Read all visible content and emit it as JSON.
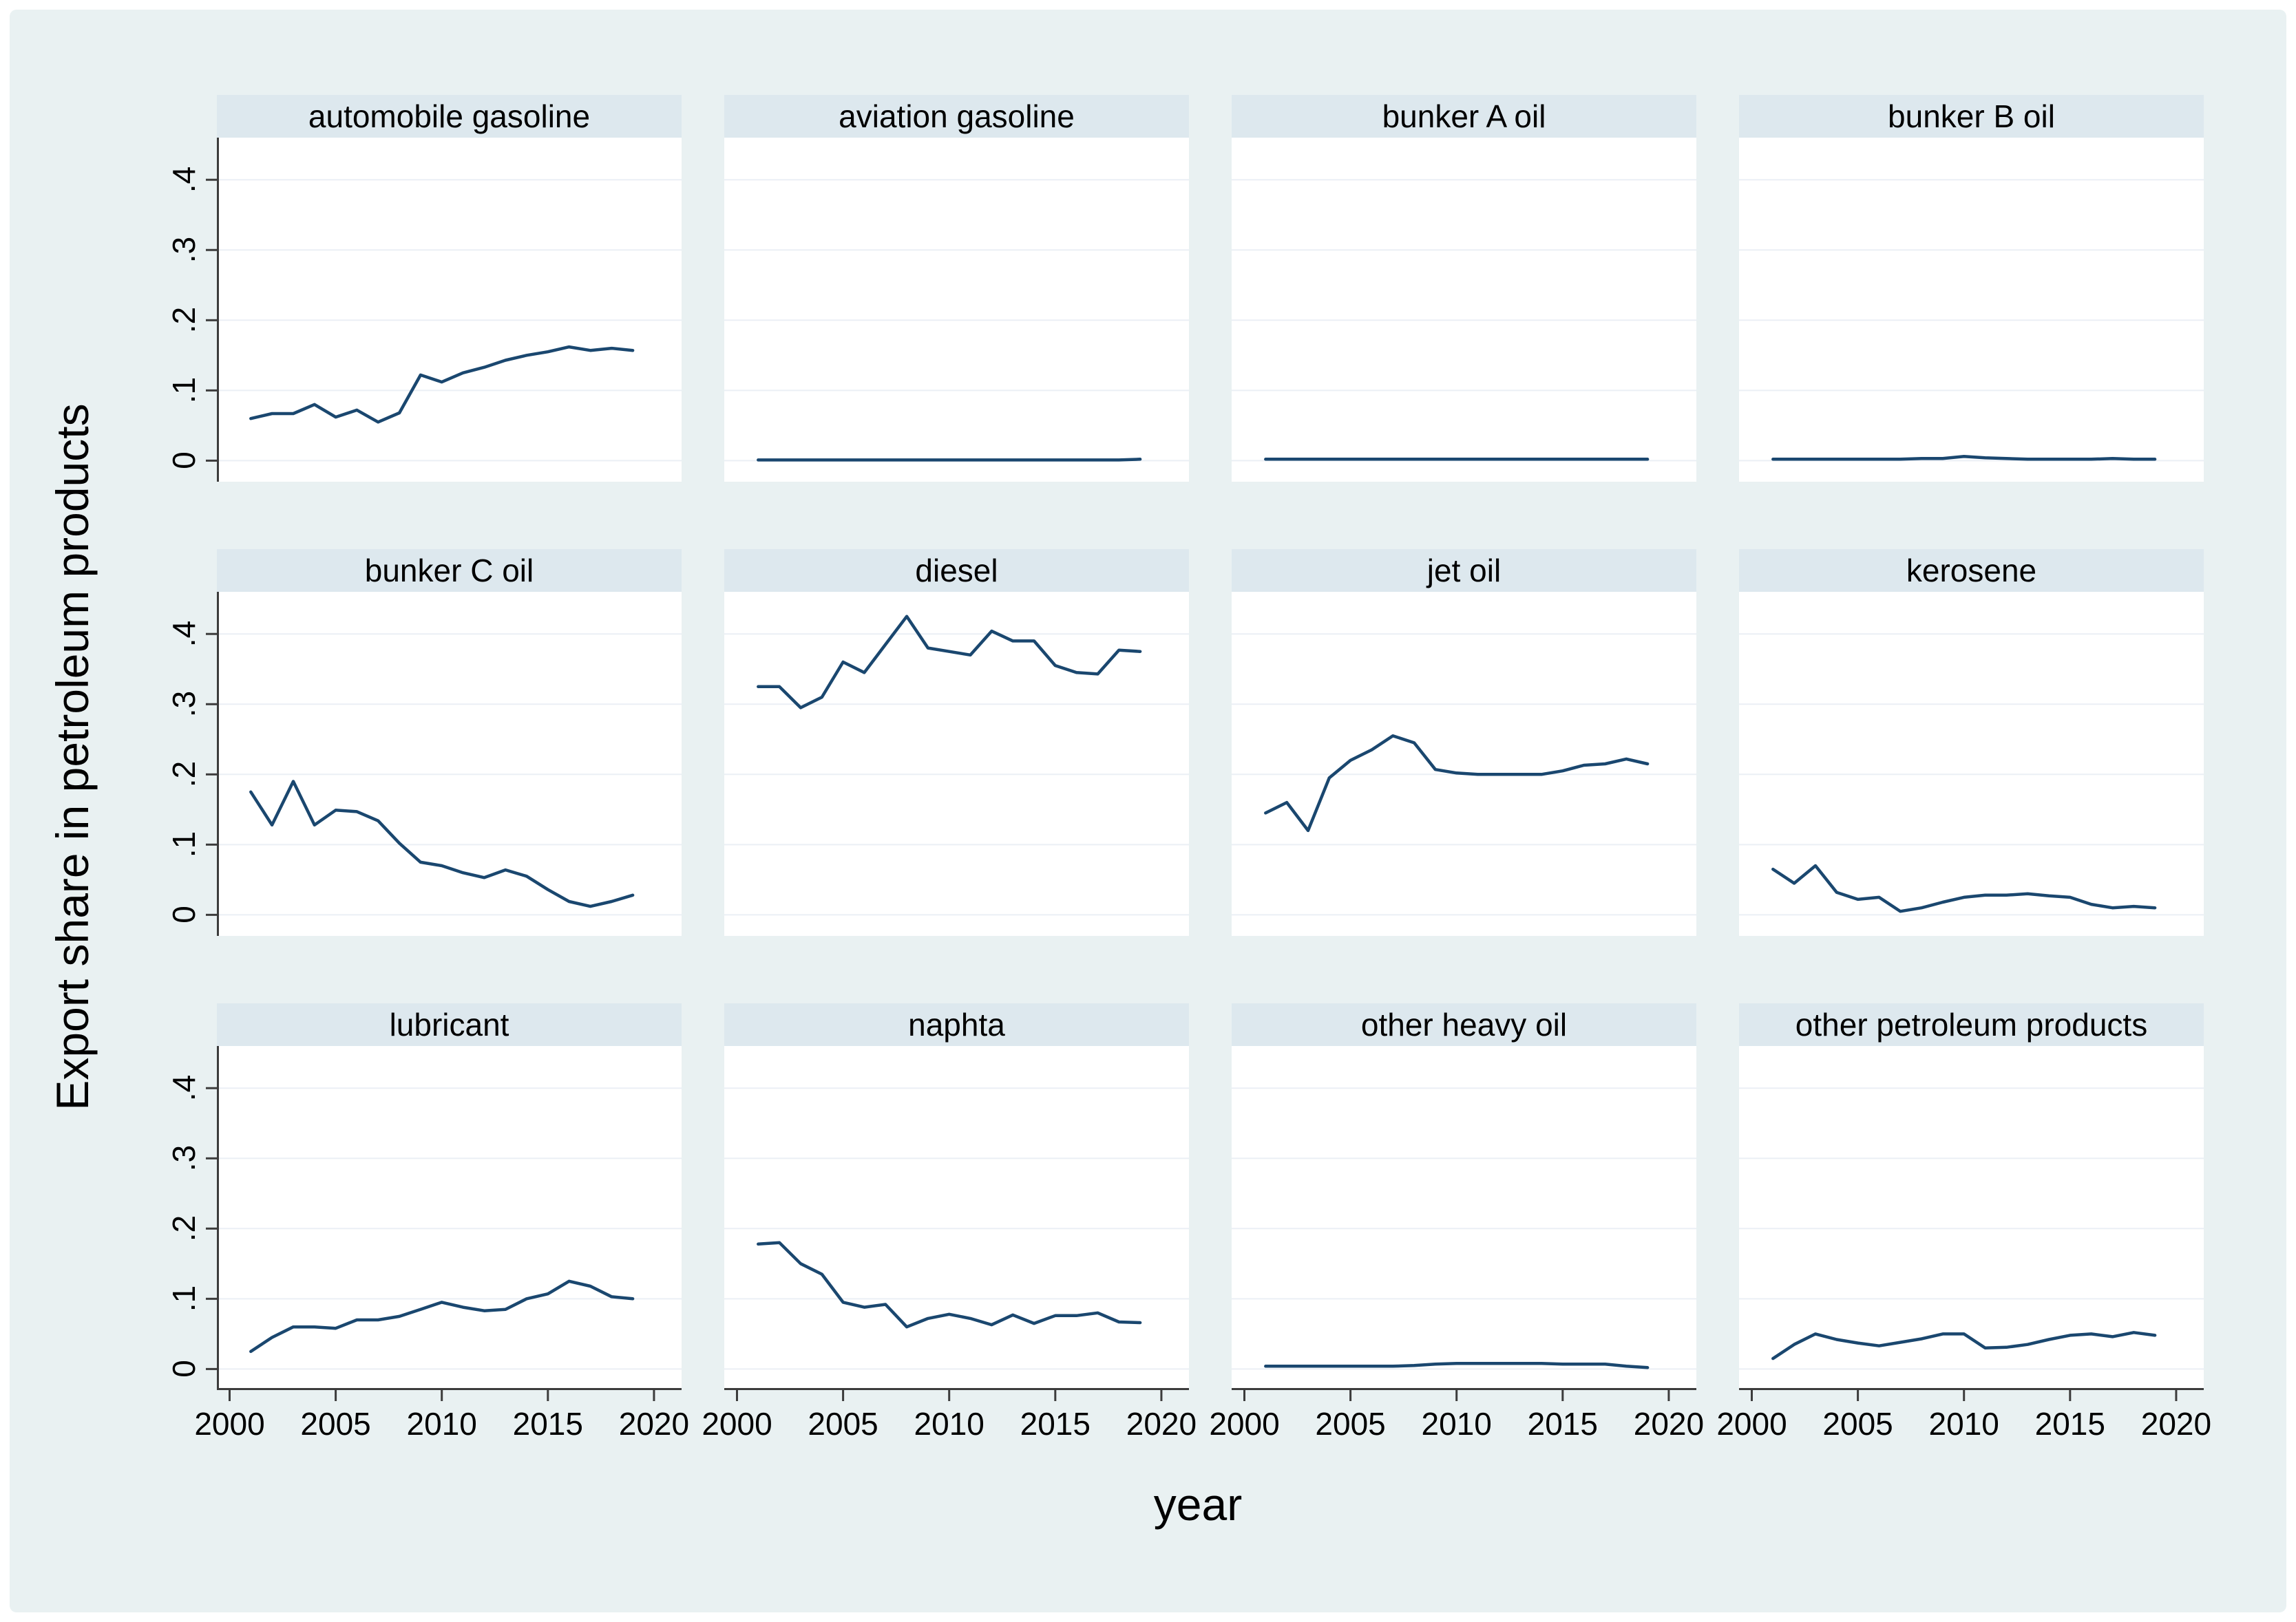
{
  "figure": {
    "ylabel": "Export share in petroleum products",
    "xlabel": "year"
  },
  "colors": {
    "board_background": "#e9f1f2",
    "strip_background": "#dde8ee",
    "plot_background": "#ffffff",
    "gridline": "#ebeff5",
    "series_line": "#1a476f",
    "axis_line": "#3c3c3c",
    "text": "#000000"
  },
  "chart_data": {
    "type": "line",
    "layout": "small-multiples 3 rows x 4 columns",
    "title": "",
    "xlabel": "year",
    "ylabel": "Export share in petroleum products",
    "grid": true,
    "legend": "none",
    "x": [
      2001,
      2002,
      2003,
      2004,
      2005,
      2006,
      2007,
      2008,
      2009,
      2010,
      2011,
      2012,
      2013,
      2014,
      2015,
      2016,
      2017,
      2018,
      2019
    ],
    "xlim": [
      1999.4,
      2021.3
    ],
    "ylim": [
      -0.03,
      0.46
    ],
    "x_ticks": [
      2000,
      2005,
      2010,
      2015,
      2020
    ],
    "x_tick_labels": [
      "2000",
      "2005",
      "2010",
      "2015",
      "2020"
    ],
    "y_ticks": [
      0.4,
      0.3,
      0.2,
      0.1,
      0
    ],
    "y_tick_labels": [
      ".4",
      ".3",
      ".2",
      ".1",
      "0"
    ],
    "panels": [
      {
        "title": "automobile gasoline",
        "values": [
          0.06,
          0.067,
          0.067,
          0.08,
          0.062,
          0.072,
          0.055,
          0.068,
          0.122,
          0.112,
          0.125,
          0.133,
          0.143,
          0.15,
          0.155,
          0.162,
          0.157,
          0.16,
          0.157
        ]
      },
      {
        "title": "aviation gasoline",
        "values": [
          0.001,
          0.001,
          0.001,
          0.001,
          0.001,
          0.001,
          0.001,
          0.001,
          0.001,
          0.001,
          0.001,
          0.001,
          0.001,
          0.001,
          0.001,
          0.001,
          0.001,
          0.001,
          0.002
        ]
      },
      {
        "title": "bunker A oil",
        "values": [
          0.002,
          0.002,
          0.002,
          0.002,
          0.002,
          0.002,
          0.002,
          0.002,
          0.002,
          0.002,
          0.002,
          0.002,
          0.002,
          0.002,
          0.002,
          0.002,
          0.002,
          0.002,
          0.002
        ]
      },
      {
        "title": "bunker B oil",
        "values": [
          0.002,
          0.002,
          0.002,
          0.002,
          0.002,
          0.002,
          0.002,
          0.003,
          0.003,
          0.006,
          0.004,
          0.003,
          0.002,
          0.002,
          0.002,
          0.002,
          0.003,
          0.002,
          0.002
        ]
      },
      {
        "title": "bunker C oil",
        "values": [
          0.175,
          0.128,
          0.19,
          0.128,
          0.149,
          0.147,
          0.134,
          0.102,
          0.075,
          0.07,
          0.06,
          0.053,
          0.064,
          0.055,
          0.036,
          0.019,
          0.012,
          0.019,
          0.028
        ]
      },
      {
        "title": "diesel",
        "values": [
          0.325,
          0.325,
          0.295,
          0.31,
          0.36,
          0.345,
          0.385,
          0.425,
          0.38,
          0.375,
          0.37,
          0.404,
          0.39,
          0.39,
          0.355,
          0.345,
          0.343,
          0.377,
          0.375
        ]
      },
      {
        "title": "jet oil",
        "values": [
          0.145,
          0.16,
          0.12,
          0.195,
          0.22,
          0.235,
          0.255,
          0.245,
          0.207,
          0.202,
          0.2,
          0.2,
          0.2,
          0.2,
          0.205,
          0.213,
          0.215,
          0.222,
          0.215
        ]
      },
      {
        "title": "kerosene",
        "values": [
          0.065,
          0.045,
          0.07,
          0.032,
          0.022,
          0.025,
          0.005,
          0.01,
          0.018,
          0.025,
          0.028,
          0.028,
          0.03,
          0.027,
          0.025,
          0.015,
          0.01,
          0.012,
          0.01
        ]
      },
      {
        "title": "lubricant",
        "values": [
          0.025,
          0.045,
          0.06,
          0.06,
          0.058,
          0.07,
          0.07,
          0.075,
          0.085,
          0.095,
          0.088,
          0.083,
          0.085,
          0.1,
          0.107,
          0.125,
          0.118,
          0.103,
          0.1
        ]
      },
      {
        "title": "naphta",
        "values": [
          0.178,
          0.18,
          0.15,
          0.135,
          0.095,
          0.088,
          0.092,
          0.06,
          0.072,
          0.078,
          0.072,
          0.063,
          0.077,
          0.065,
          0.076,
          0.076,
          0.08,
          0.067,
          0.066
        ]
      },
      {
        "title": "other heavy oil",
        "values": [
          0.004,
          0.004,
          0.004,
          0.004,
          0.004,
          0.004,
          0.004,
          0.005,
          0.007,
          0.008,
          0.008,
          0.008,
          0.008,
          0.008,
          0.007,
          0.007,
          0.007,
          0.004,
          0.002
        ]
      },
      {
        "title": "other petroleum products",
        "values": [
          0.015,
          0.035,
          0.05,
          0.042,
          0.037,
          0.033,
          0.038,
          0.043,
          0.05,
          0.05,
          0.03,
          0.031,
          0.035,
          0.042,
          0.048,
          0.05,
          0.046,
          0.052,
          0.048
        ]
      }
    ]
  }
}
